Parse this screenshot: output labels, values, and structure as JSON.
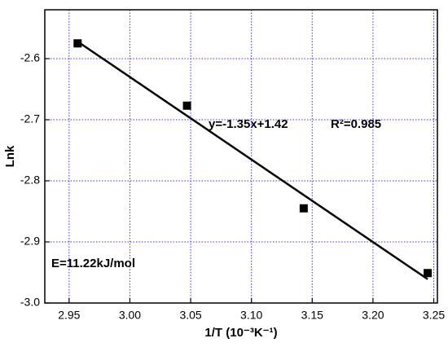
{
  "chart_data": {
    "type": "scatter",
    "x": [
      2.957,
      3.047,
      3.143,
      3.245
    ],
    "values": [
      -2.575,
      -2.677,
      -2.845,
      -2.951
    ],
    "color": "#000000",
    "fit_x": [
      2.957,
      3.245
    ],
    "fit_values": [
      -2.572,
      -2.961
    ],
    "x_label": "1/T (10⁻³K⁻¹)",
    "y_label": "Lnk",
    "annotations": [
      "y=-1.35x+1.42",
      "R²=0.985",
      "E=11.22kJ/mol"
    ],
    "xlim": [
      2.93,
      3.253
    ],
    "ylim": [
      -3.0,
      -2.52
    ],
    "xticks": [
      2.95,
      {
        "value": 3,
        "label": "3.00"
      },
      3.05,
      {
        "value": 3.1,
        "label": "3.10"
      },
      3.15,
      {
        "value": 3.2,
        "label": "3.20"
      },
      3.25
    ],
    "yticks": [
      -2.6,
      -2.7,
      -2.8,
      -2.9,
      {
        "value": -3,
        "label": "-3.0"
      }
    ],
    "grid": true,
    "grid_color": "#3333ff"
  }
}
